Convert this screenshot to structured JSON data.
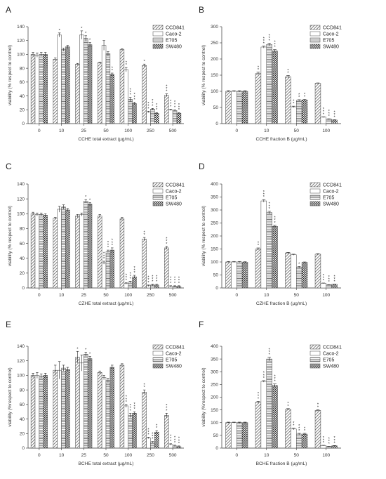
{
  "colors": {
    "bar_stroke": "#444444",
    "axis": "#333333",
    "background": "#ffffff"
  },
  "legend_labels": [
    "CCD841",
    "Caco-2",
    "E705",
    "SW480"
  ],
  "series_patterns": [
    "diagonal-hatch",
    "white",
    "horizontal-lines",
    "checkered"
  ],
  "chart_data": [
    {
      "panel": "A",
      "type": "bar",
      "xlabel": "CCHE total extract (µg/mL)",
      "ylabel": "viability (% respect to control)",
      "ylim": [
        0,
        140
      ],
      "yticks": [
        0,
        20,
        40,
        60,
        80,
        100,
        120,
        140
      ],
      "categories": [
        "0",
        "10",
        "25",
        "50",
        "100",
        "250",
        "500"
      ],
      "series": [
        {
          "name": "CCD841",
          "values": [
            100,
            93,
            86,
            88,
            107,
            84,
            41
          ],
          "err": [
            3,
            2,
            1,
            1,
            1,
            2,
            2
          ],
          "stars": [
            "",
            "",
            "",
            "",
            "",
            "*",
            "***"
          ]
        },
        {
          "name": "Caco-2",
          "values": [
            99,
            128,
            128,
            113,
            78,
            17,
            20
          ],
          "err": [
            3,
            3,
            6,
            7,
            3,
            1,
            1
          ],
          "stars": [
            "",
            "*",
            "*",
            "",
            "**",
            "***",
            "***"
          ]
        },
        {
          "name": "E705",
          "values": [
            100,
            107,
            123,
            101,
            35,
            21,
            19
          ],
          "err": [
            3,
            2,
            4,
            3,
            3,
            1,
            1
          ],
          "stars": [
            "",
            "",
            "*",
            "",
            "***",
            "***",
            "***"
          ]
        },
        {
          "name": "SW480",
          "values": [
            100,
            111,
            114,
            71,
            29,
            15,
            15
          ],
          "err": [
            3,
            2,
            3,
            2,
            2,
            1,
            1
          ],
          "stars": [
            "",
            "",
            "*",
            "**",
            "***",
            "***",
            "***"
          ]
        }
      ],
      "legend": "top-right",
      "grid": false
    },
    {
      "panel": "B",
      "type": "bar",
      "xlabel": "CCHE fraction B (µg/mL)",
      "ylabel": "viability (% respect to control)",
      "ylim": [
        0,
        300
      ],
      "yticks": [
        0,
        50,
        100,
        150,
        200,
        250,
        300
      ],
      "categories": [
        "0",
        "10",
        "50",
        "100"
      ],
      "series": [
        {
          "name": "CCD841",
          "values": [
            100,
            155,
            145,
            125
          ],
          "err": [
            2,
            4,
            4,
            1
          ],
          "stars": [
            "",
            "**",
            "**",
            ""
          ]
        },
        {
          "name": "Caco-2",
          "values": [
            100,
            237,
            52,
            20
          ],
          "err": [
            2,
            3,
            2,
            1
          ],
          "stars": [
            "",
            "***",
            "**",
            "***"
          ]
        },
        {
          "name": "E705",
          "values": [
            100,
            245,
            72,
            14
          ],
          "err": [
            2,
            4,
            2,
            1
          ],
          "stars": [
            "",
            "***",
            "**",
            "***"
          ]
        },
        {
          "name": "SW480",
          "values": [
            100,
            225,
            73,
            11
          ],
          "err": [
            2,
            4,
            2,
            1
          ],
          "stars": [
            "",
            "***",
            "**",
            "***"
          ]
        }
      ],
      "legend": "top-right",
      "grid": false
    },
    {
      "panel": "C",
      "type": "bar",
      "xlabel": "CZHE total extract (µg/mL)",
      "ylabel": "viability (% respect to control)",
      "ylim": [
        0,
        140
      ],
      "yticks": [
        0,
        20,
        40,
        60,
        80,
        100,
        120,
        140
      ],
      "categories": [
        "0",
        "10",
        "25",
        "50",
        "100",
        "250",
        "500"
      ],
      "series": [
        {
          "name": "CCD841",
          "values": [
            100,
            94,
            97,
            97,
            93,
            66,
            54
          ],
          "err": [
            2,
            1,
            2,
            2,
            2,
            2,
            2
          ],
          "stars": [
            "",
            "",
            "",
            "",
            "",
            "**",
            "***"
          ]
        },
        {
          "name": "Caco-2",
          "values": [
            99,
            106,
            99,
            34,
            6,
            3,
            2
          ],
          "err": [
            2,
            4,
            2,
            2,
            1,
            1,
            1
          ],
          "stars": [
            "",
            "",
            "",
            "***",
            "***",
            "***",
            "***"
          ]
        },
        {
          "name": "E705",
          "values": [
            99,
            109,
            117,
            49,
            8,
            4,
            2
          ],
          "err": [
            2,
            3,
            2,
            2,
            1,
            1,
            1
          ],
          "stars": [
            "",
            "",
            "*",
            "***",
            "***",
            "***",
            "***"
          ]
        },
        {
          "name": "SW480",
          "values": [
            98,
            105,
            113,
            51,
            15,
            4,
            2
          ],
          "err": [
            2,
            2,
            2,
            3,
            2,
            1,
            1
          ],
          "stars": [
            "",
            "",
            "*",
            "***",
            "***",
            "***",
            "***"
          ]
        }
      ],
      "legend": "top-right",
      "grid": false
    },
    {
      "panel": "D",
      "type": "bar",
      "xlabel": "CZHE fraction B (µg/mL)",
      "ylabel": "viability (% respect to control)",
      "ylim": [
        0,
        400
      ],
      "yticks": [
        0,
        50,
        100,
        150,
        200,
        250,
        300,
        350,
        400
      ],
      "categories": [
        "0",
        "10",
        "50",
        "100"
      ],
      "series": [
        {
          "name": "CCD841",
          "values": [
            100,
            150,
            135,
            130
          ],
          "err": [
            2,
            4,
            2,
            2
          ],
          "stars": [
            "",
            "**",
            "",
            ""
          ]
        },
        {
          "name": "Caco-2",
          "values": [
            100,
            335,
            128,
            18
          ],
          "err": [
            2,
            5,
            2,
            1
          ],
          "stars": [
            "",
            "***",
            "",
            "***"
          ]
        },
        {
          "name": "E705",
          "values": [
            100,
            290,
            80,
            12
          ],
          "err": [
            2,
            5,
            3,
            1
          ],
          "stars": [
            "",
            "***",
            "*",
            "***"
          ]
        },
        {
          "name": "SW480",
          "values": [
            99,
            237,
            98,
            14
          ],
          "err": [
            2,
            4,
            2,
            1
          ],
          "stars": [
            "",
            "***",
            "",
            "***"
          ]
        }
      ],
      "legend": "top-right",
      "grid": false
    },
    {
      "panel": "E",
      "type": "bar",
      "xlabel": "BCHE total extract (µg/mL)",
      "ylabel": "viability (%respect to control)",
      "ylim": [
        0,
        140
      ],
      "yticks": [
        0,
        20,
        40,
        60,
        80,
        100,
        120,
        140
      ],
      "categories": [
        "0",
        "10",
        "25",
        "50",
        "100",
        "250",
        "500"
      ],
      "series": [
        {
          "name": "CCD841",
          "values": [
            100,
            107,
            125,
            104,
            114,
            77,
            45
          ],
          "err": [
            3,
            7,
            8,
            2,
            2,
            3,
            3
          ],
          "stars": [
            "",
            "",
            "*",
            "",
            "",
            "**",
            "***"
          ]
        },
        {
          "name": "Caco-2",
          "values": [
            100,
            107,
            117,
            97,
            58,
            14,
            5
          ],
          "err": [
            4,
            12,
            11,
            3,
            2,
            1,
            1
          ],
          "stars": [
            "",
            "",
            "",
            "",
            "***",
            "***",
            "***"
          ]
        },
        {
          "name": "E705",
          "values": [
            99,
            110,
            129,
            93,
            45,
            8,
            3
          ],
          "err": [
            3,
            4,
            3,
            3,
            3,
            1,
            1
          ],
          "stars": [
            "",
            "",
            "*",
            "",
            "***",
            "***",
            "***"
          ]
        },
        {
          "name": "SW480",
          "values": [
            100,
            108,
            123,
            111,
            48,
            22,
            2
          ],
          "err": [
            3,
            3,
            3,
            3,
            2,
            2,
            1
          ],
          "stars": [
            "",
            "",
            "*",
            "",
            "***",
            "**",
            "***"
          ]
        }
      ],
      "legend": "top-right",
      "grid": false
    },
    {
      "panel": "F",
      "type": "bar",
      "xlabel": "BCHE fraction B (µg/mL)",
      "ylabel": "viability (%respect to control)",
      "ylim": [
        0,
        400
      ],
      "yticks": [
        0,
        50,
        100,
        150,
        200,
        250,
        300,
        350,
        400
      ],
      "categories": [
        "0",
        "10",
        "50",
        "100"
      ],
      "series": [
        {
          "name": "CCD841",
          "values": [
            100,
            180,
            152,
            148
          ],
          "err": [
            2,
            4,
            3,
            3
          ],
          "stars": [
            "",
            "***",
            "**",
            "**"
          ]
        },
        {
          "name": "Caco-2",
          "values": [
            100,
            262,
            75,
            10
          ],
          "err": [
            2,
            3,
            3,
            1
          ],
          "stars": [
            "",
            "***",
            "**",
            "***"
          ]
        },
        {
          "name": "E705",
          "values": [
            100,
            350,
            55,
            6
          ],
          "err": [
            2,
            7,
            3,
            1
          ],
          "stars": [
            "",
            "***",
            "***",
            "***"
          ]
        },
        {
          "name": "SW480",
          "values": [
            100,
            246,
            55,
            9
          ],
          "err": [
            2,
            6,
            3,
            1
          ],
          "stars": [
            "",
            "***",
            "**",
            "***"
          ]
        }
      ],
      "legend": "top-right",
      "grid": false
    }
  ]
}
